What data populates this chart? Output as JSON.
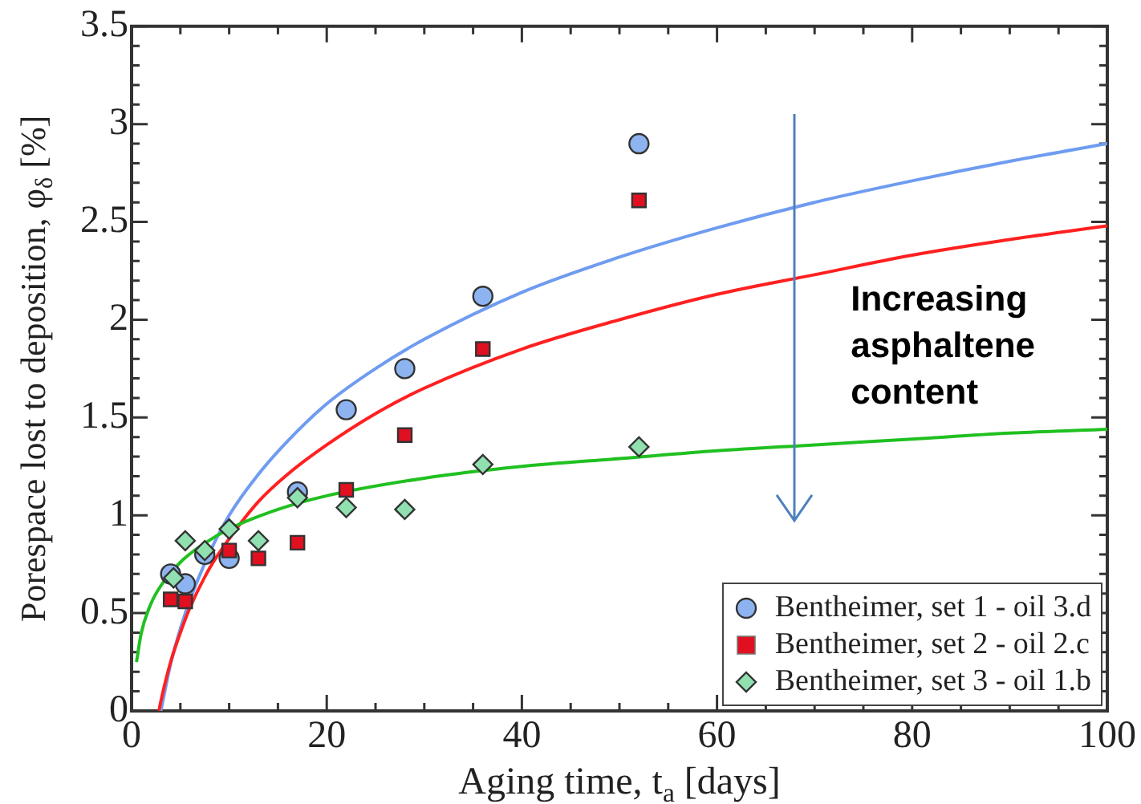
{
  "chart_data": {
    "type": "scatter",
    "xlabel": "Aging time, t$_{a}$ [days]",
    "ylabel": "Porespace lost to deposition, φ$_{δ}$ [%]",
    "xlim": [
      0,
      100
    ],
    "ylim": [
      0,
      3.5
    ],
    "xticks": [
      0,
      {
        "value": 5,
        "label": null
      },
      {
        "value": 10,
        "label": null
      },
      {
        "value": 15,
        "label": null
      },
      20,
      {
        "value": 25,
        "label": null
      },
      {
        "value": 30,
        "label": null
      },
      {
        "value": 35,
        "label": null
      },
      40,
      {
        "value": 45,
        "label": null
      },
      {
        "value": 50,
        "label": null
      },
      {
        "value": 55,
        "label": null
      },
      60,
      {
        "value": 65,
        "label": null
      },
      {
        "value": 70,
        "label": null
      },
      {
        "value": 75,
        "label": null
      },
      80,
      {
        "value": 85,
        "label": null
      },
      {
        "value": 90,
        "label": null
      },
      {
        "value": 95,
        "label": null
      },
      100
    ],
    "yticks": [
      0,
      {
        "value": 0.1,
        "label": null
      },
      {
        "value": 0.2,
        "label": null
      },
      {
        "value": 0.3,
        "label": null
      },
      {
        "value": 0.4,
        "label": null
      },
      0.5,
      {
        "value": 0.6,
        "label": null
      },
      {
        "value": 0.7,
        "label": null
      },
      {
        "value": 0.8,
        "label": null
      },
      {
        "value": 0.9,
        "label": null
      },
      1,
      {
        "value": 1.1,
        "label": null
      },
      {
        "value": 1.2,
        "label": null
      },
      {
        "value": 1.3,
        "label": null
      },
      {
        "value": 1.4,
        "label": null
      },
      1.5,
      {
        "value": 1.6,
        "label": null
      },
      {
        "value": 1.7,
        "label": null
      },
      {
        "value": 1.8,
        "label": null
      },
      {
        "value": 1.9,
        "label": null
      },
      2,
      {
        "value": 2.1,
        "label": null
      },
      {
        "value": 2.2,
        "label": null
      },
      {
        "value": 2.3,
        "label": null
      },
      {
        "value": 2.4,
        "label": null
      },
      2.5,
      {
        "value": 2.6,
        "label": null
      },
      {
        "value": 2.7,
        "label": null
      },
      {
        "value": 2.8,
        "label": null
      },
      {
        "value": 2.9,
        "label": null
      },
      3,
      {
        "value": 3.1,
        "label": null
      },
      {
        "value": 3.2,
        "label": null
      },
      {
        "value": 3.3,
        "label": null
      },
      {
        "value": 3.4,
        "label": null
      },
      3.5
    ],
    "grid": false,
    "legend": "bottom right",
    "annotations": [
      "Increasing asphaltene content"
    ],
    "series": [
      {
        "type": "line",
        "marker": "none",
        "color": "#6f9cf0",
        "x": [
          3,
          4,
          5,
          6,
          8,
          10,
          13,
          16,
          20,
          25,
          30,
          40,
          50,
          60,
          70,
          80,
          90,
          100
        ],
        "values": [
          0,
          0.24,
          0.42,
          0.57,
          0.81,
          1.0,
          1.21,
          1.38,
          1.57,
          1.75,
          1.9,
          2.14,
          2.32,
          2.47,
          2.6,
          2.71,
          2.81,
          2.9
        ]
      },
      {
        "type": "line",
        "marker": "none",
        "color": "#ff2020",
        "x": [
          2.8,
          3,
          4,
          5,
          6,
          8,
          10,
          13,
          16,
          20,
          25,
          30,
          40,
          50,
          60,
          70,
          80,
          90,
          100
        ],
        "values": [
          0,
          0.05,
          0.25,
          0.4,
          0.53,
          0.73,
          0.88,
          1.07,
          1.21,
          1.36,
          1.52,
          1.65,
          1.85,
          2.0,
          2.13,
          2.23,
          2.33,
          2.41,
          2.48
        ]
      },
      {
        "type": "line",
        "marker": "none",
        "color": "#20c020",
        "x": [
          0.5,
          1,
          2,
          3,
          5,
          7,
          10,
          15,
          20,
          30,
          40,
          50,
          60,
          70,
          80,
          90,
          100
        ],
        "values": [
          0.25,
          0.4,
          0.55,
          0.64,
          0.76,
          0.84,
          0.93,
          1.03,
          1.1,
          1.19,
          1.25,
          1.29,
          1.33,
          1.36,
          1.39,
          1.42,
          1.44
        ]
      },
      {
        "type": "scatter",
        "marker": "circle",
        "name": "Bentheimer, set 1 - oil 3.d",
        "color": "#8db4f0",
        "x": [
          4,
          5.5,
          7.5,
          10,
          17,
          22,
          28,
          36,
          52
        ],
        "values": [
          0.7,
          0.65,
          0.8,
          0.78,
          1.12,
          1.54,
          1.75,
          2.12,
          2.9
        ]
      },
      {
        "type": "scatter",
        "marker": "square",
        "name": "Bentheimer, set 2 - oil 2.c",
        "color": "#e01020",
        "x": [
          4,
          5.5,
          10,
          13,
          17,
          22,
          28,
          36,
          52
        ],
        "values": [
          0.57,
          0.56,
          0.82,
          0.78,
          0.86,
          1.13,
          1.41,
          1.85,
          2.61
        ]
      },
      {
        "type": "scatter",
        "marker": "diamond",
        "name": "Bentheimer, set 3 - oil 1.b",
        "color": "#90e0b0",
        "x": [
          4.3,
          5.5,
          7.5,
          10,
          13,
          17,
          22,
          28,
          36,
          52
        ],
        "values": [
          0.68,
          0.87,
          0.82,
          0.93,
          0.87,
          1.09,
          1.04,
          1.03,
          1.26,
          1.35
        ]
      }
    ]
  }
}
